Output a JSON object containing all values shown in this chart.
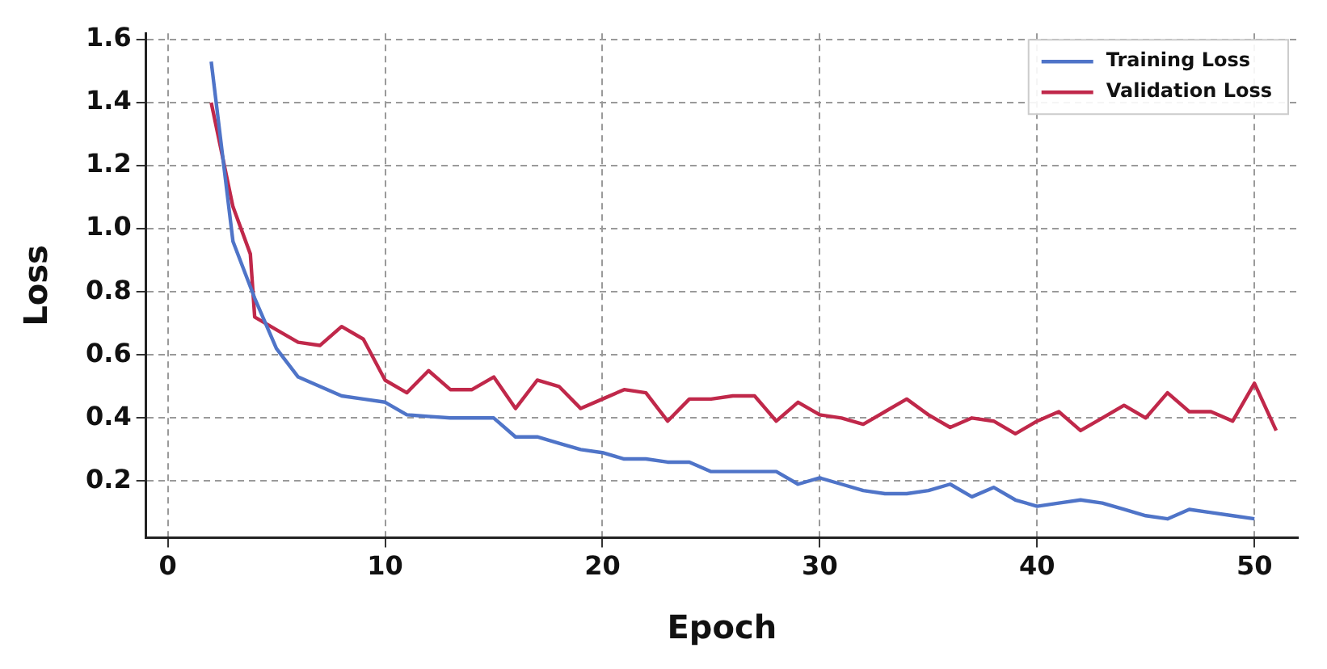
{
  "chart_data": {
    "type": "line",
    "xlabel": "Epoch",
    "ylabel": "Loss",
    "xlim": [
      -1,
      52
    ],
    "ylim": [
      0.02,
      1.62
    ],
    "xticks": [
      0,
      10,
      20,
      30,
      40,
      50
    ],
    "yticks": [
      0.2,
      0.4,
      0.6,
      0.8,
      {
        "value": 1,
        "label": "1.0"
      },
      1.2,
      1.4,
      1.6
    ],
    "grid": true,
    "legend": "top right",
    "line_style": "solid",
    "marker": "none",
    "series": [
      {
        "name": "Training Loss",
        "color": "#4f74c8",
        "x": [
          2,
          3,
          4,
          5,
          6,
          7,
          8,
          9,
          10,
          11,
          12,
          13,
          14,
          15,
          16,
          17,
          18,
          19,
          20,
          21,
          22,
          23,
          24,
          25,
          26,
          27,
          28,
          29,
          30,
          31,
          32,
          33,
          34,
          35,
          36,
          37,
          38,
          39,
          40,
          41,
          42,
          43,
          44,
          45,
          46,
          47,
          48,
          49,
          50
        ],
        "values": [
          1.53,
          0.96,
          0.78,
          0.62,
          0.53,
          0.5,
          0.47,
          0.46,
          0.45,
          0.41,
          0.405,
          0.4,
          0.4,
          0.4,
          0.34,
          0.34,
          0.32,
          0.3,
          0.29,
          0.27,
          0.27,
          0.26,
          0.26,
          0.23,
          0.23,
          0.23,
          0.23,
          0.19,
          0.21,
          0.19,
          0.17,
          0.16,
          0.16,
          0.17,
          0.19,
          0.15,
          0.18,
          0.14,
          0.12,
          0.13,
          0.14,
          0.13,
          0.11,
          0.09,
          0.08,
          0.11,
          0.1,
          0.09,
          0.08
        ]
      },
      {
        "name": "Validation Loss",
        "color": "#c0284a",
        "x": [
          2,
          3,
          3.8,
          4,
          5,
          6,
          7,
          8,
          9,
          10,
          11,
          12,
          13,
          14,
          15,
          16,
          17,
          18,
          19,
          20,
          21,
          22,
          23,
          24,
          25,
          26,
          27,
          28,
          29,
          30,
          31,
          32,
          33,
          34,
          35,
          36,
          37,
          38,
          39,
          40,
          41,
          42,
          43,
          44,
          45,
          46,
          47,
          48,
          49,
          50,
          51
        ],
        "values": [
          1.4,
          1.07,
          0.92,
          0.72,
          0.68,
          0.64,
          0.63,
          0.69,
          0.65,
          0.52,
          0.48,
          0.55,
          0.49,
          0.49,
          0.53,
          0.43,
          0.52,
          0.5,
          0.43,
          0.46,
          0.49,
          0.48,
          0.39,
          0.46,
          0.46,
          0.47,
          0.47,
          0.39,
          0.45,
          0.41,
          0.4,
          0.38,
          0.42,
          0.46,
          0.41,
          0.37,
          0.4,
          0.39,
          0.35,
          0.39,
          0.42,
          0.36,
          0.4,
          0.44,
          0.4,
          0.48,
          0.42,
          0.42,
          0.39,
          0.51,
          0.36
        ]
      }
    ]
  }
}
